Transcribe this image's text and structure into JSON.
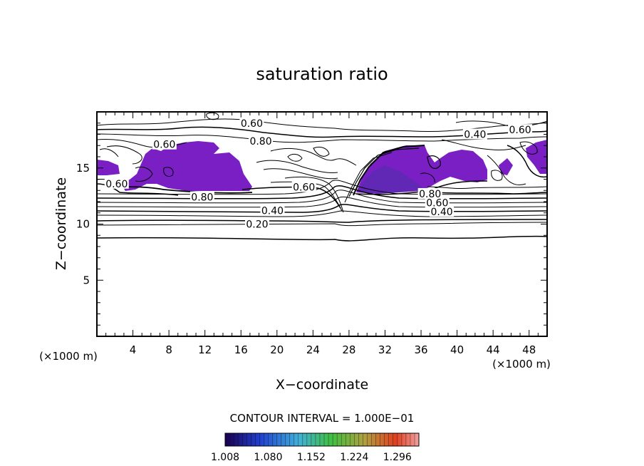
{
  "chart_data": {
    "type": "contour",
    "title": "saturation ratio",
    "xlabel": "X−coordinate",
    "ylabel": "Z−coordinate",
    "x_unit_left": "(×1000 m)",
    "x_unit_right": "(×1000 m)",
    "xlim": [
      0,
      50
    ],
    "ylim": [
      0,
      20
    ],
    "x_ticks": [
      4,
      8,
      12,
      16,
      20,
      24,
      28,
      32,
      36,
      40,
      44,
      48
    ],
    "y_ticks": [
      5,
      10,
      15
    ],
    "contour_interval_text": "CONTOUR INTERVAL = 1.000E−01",
    "contour_labels": [
      {
        "text": "0.20",
        "x": 17.8,
        "y": 10.0
      },
      {
        "text": "0.40",
        "x": 19.5,
        "y": 11.2
      },
      {
        "text": "0.40",
        "x": 38.3,
        "y": 11.1
      },
      {
        "text": "0.60",
        "x": 37.8,
        "y": 11.9
      },
      {
        "text": "0.80",
        "x": 11.7,
        "y": 12.4
      },
      {
        "text": "0.80",
        "x": 37.0,
        "y": 12.7
      },
      {
        "text": "0.60",
        "x": 2.2,
        "y": 13.6
      },
      {
        "text": "0.60",
        "x": 23.0,
        "y": 13.3
      },
      {
        "text": "0.60",
        "x": 7.5,
        "y": 17.1
      },
      {
        "text": "0.80",
        "x": 18.2,
        "y": 17.4
      },
      {
        "text": "0.60",
        "x": 17.2,
        "y": 19.0
      },
      {
        "text": "0.40",
        "x": 42.0,
        "y": 18.0
      },
      {
        "text": "0.60",
        "x": 47.0,
        "y": 18.4
      }
    ],
    "colorbar": {
      "min": 1.008,
      "max": 1.332,
      "tick_labels": [
        "1.008",
        "1.080",
        "1.152",
        "1.224",
        "1.296"
      ]
    }
  },
  "colors": {
    "fill": "#7a1fc4",
    "fill_dark": "#4a2fa8"
  }
}
